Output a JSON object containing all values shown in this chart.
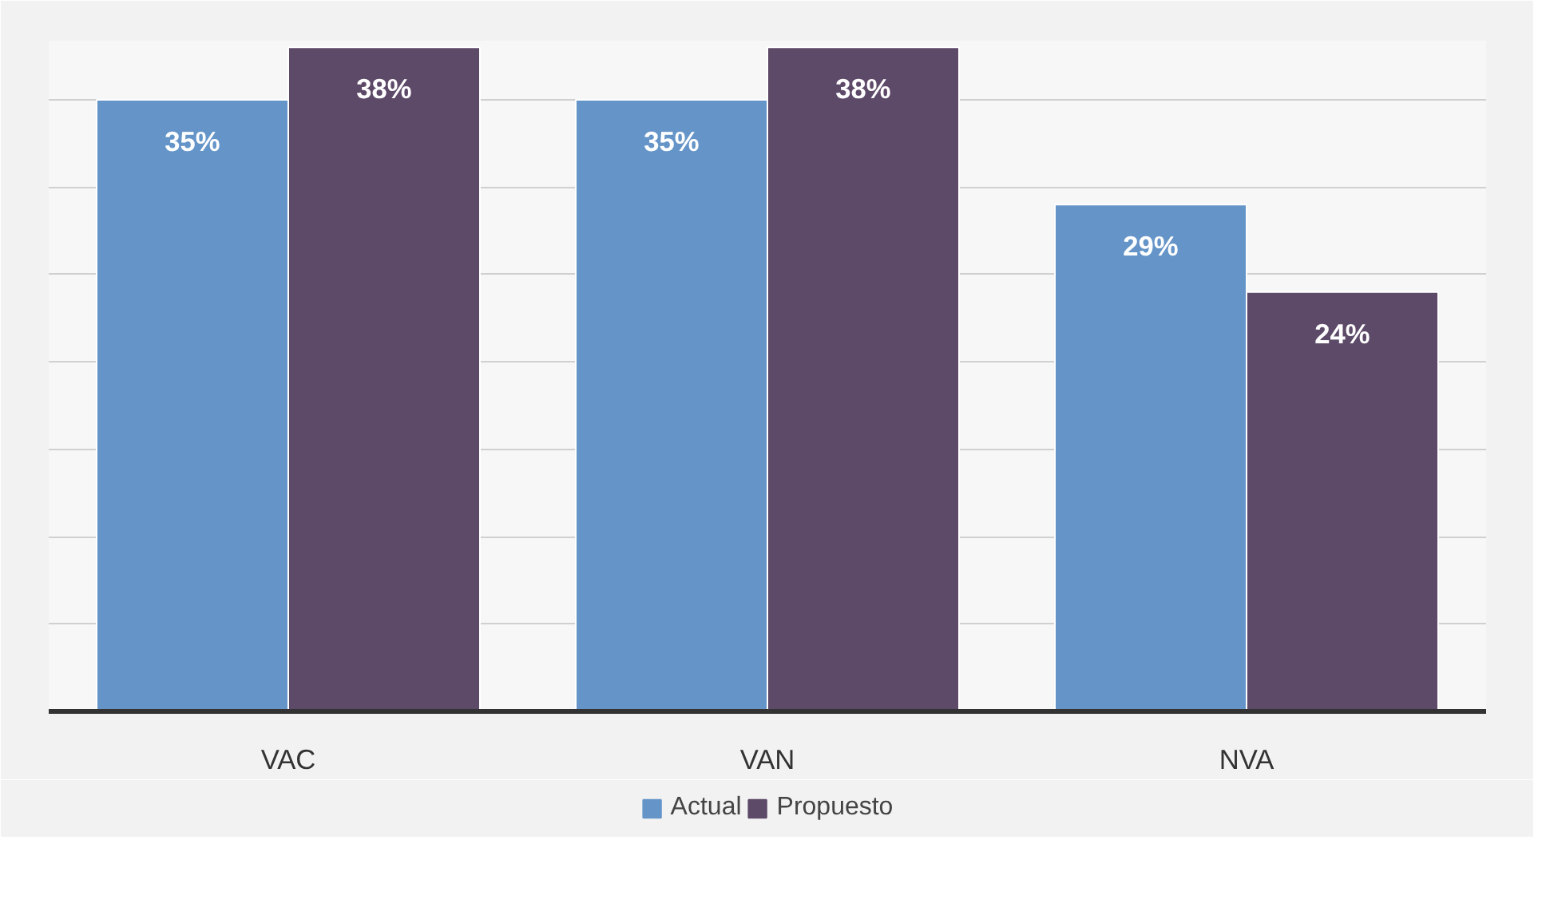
{
  "chart_data": {
    "type": "bar",
    "categories": [
      "VAC",
      "VAN",
      "NVA"
    ],
    "series": [
      {
        "name": "Actual",
        "color": "#6595c8",
        "values": [
          35,
          35,
          29
        ],
        "value_labels": [
          "35%",
          "35%",
          "29%"
        ]
      },
      {
        "name": "Propuesto",
        "color": "#5d4968",
        "values": [
          38,
          38,
          24
        ],
        "value_labels": [
          "38%",
          "38%",
          "24%"
        ]
      }
    ],
    "grid": "y",
    "legend": "bottom",
    "tick_labels": "x"
  }
}
